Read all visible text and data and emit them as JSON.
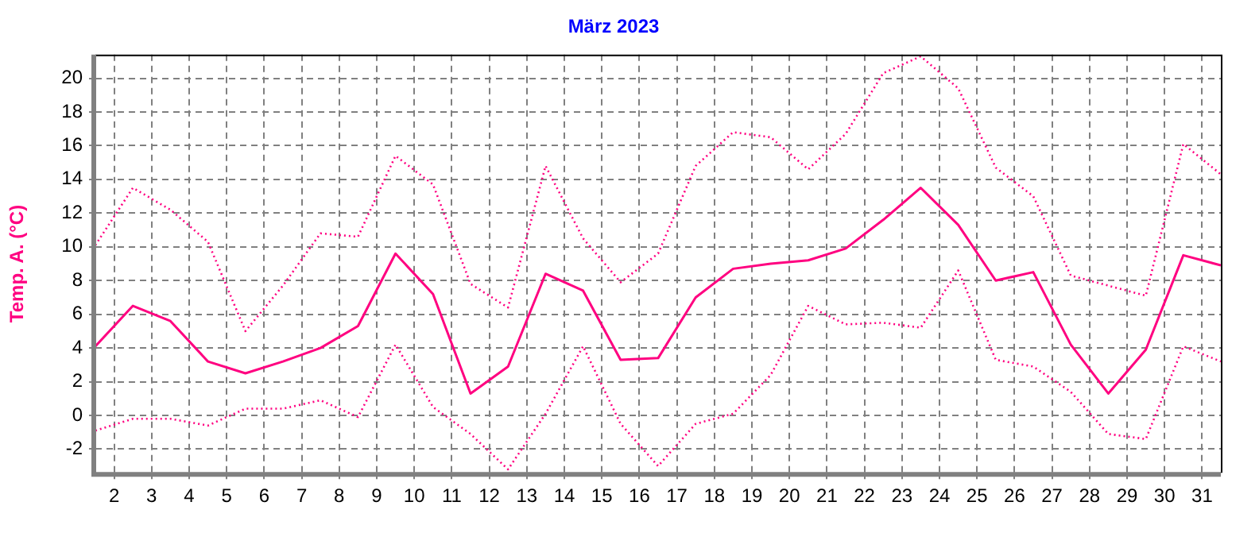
{
  "chart_data": {
    "type": "line",
    "title": "März 2023",
    "ylabel": "Temp. A. (°C)",
    "x": [
      1.5,
      2.5,
      3.5,
      4.5,
      5.5,
      6.5,
      7.5,
      8.5,
      9.5,
      10.5,
      11.5,
      12.5,
      13.5,
      14.5,
      15.5,
      16.5,
      17.5,
      18.5,
      19.5,
      20.5,
      21.5,
      22.5,
      23.5,
      24.5,
      25.5,
      26.5,
      27.5,
      28.5,
      29.5,
      30.5,
      31.5
    ],
    "series": [
      {
        "color": "#ff0080",
        "line_style": "dotted",
        "values": [
          10.1,
          13.5,
          12.2,
          10.3,
          5.0,
          7.7,
          10.8,
          10.6,
          15.4,
          13.7,
          7.8,
          6.4,
          14.8,
          10.5,
          7.9,
          9.6,
          14.8,
          16.8,
          16.5,
          14.6,
          16.7,
          20.3,
          21.3,
          19.4,
          14.7,
          13.0,
          8.3,
          7.7,
          7.1,
          16.1,
          14.3
        ]
      },
      {
        "color": "#ff0080",
        "line_style": "solid",
        "values": [
          4.1,
          6.5,
          5.6,
          3.2,
          2.5,
          3.2,
          4.0,
          5.3,
          9.6,
          7.2,
          1.3,
          2.9,
          8.4,
          7.4,
          3.3,
          3.4,
          7.0,
          8.7,
          9.0,
          9.2,
          9.9,
          11.6,
          13.5,
          11.3,
          8.0,
          8.5,
          4.2,
          1.3,
          3.9,
          9.5,
          8.9
        ]
      },
      {
        "color": "#ff0080",
        "line_style": "dotted",
        "values": [
          -0.9,
          -0.2,
          -0.2,
          -0.6,
          0.4,
          0.4,
          0.9,
          -0.1,
          4.2,
          0.5,
          -1.1,
          -3.2,
          0.1,
          4.1,
          -0.5,
          -3.0,
          -0.5,
          0.1,
          2.4,
          6.5,
          5.4,
          5.5,
          5.2,
          8.6,
          3.3,
          2.9,
          1.4,
          -1.1,
          -1.4,
          4.1,
          3.2
        ]
      }
    ],
    "xlim": [
      1.5,
      31.5
    ],
    "xticks": [
      2,
      3,
      4,
      5,
      6,
      7,
      8,
      9,
      10,
      11,
      12,
      13,
      14,
      15,
      16,
      17,
      18,
      19,
      20,
      21,
      22,
      23,
      24,
      25,
      26,
      27,
      28,
      29,
      30,
      31
    ],
    "ylim": [
      -3.4,
      21.4
    ],
    "yticks": [
      -2,
      0,
      2,
      4,
      6,
      8,
      10,
      12,
      14,
      16,
      18,
      20
    ],
    "grid": true,
    "legend": false,
    "marker": "none"
  }
}
